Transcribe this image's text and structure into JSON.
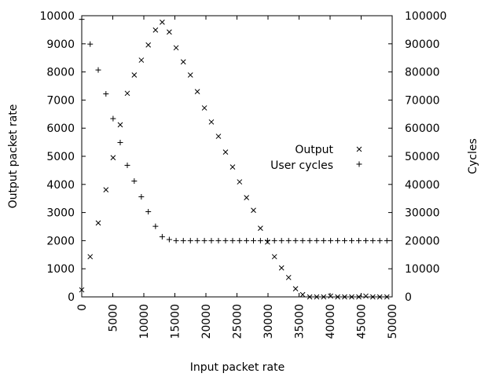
{
  "chart_data": {
    "type": "scatter",
    "title": "",
    "xlabel": "Input packet rate",
    "ylabel": "Output packet rate",
    "y2label": "Cycles",
    "xlim": [
      0,
      50000
    ],
    "ylim": [
      0,
      10000
    ],
    "y2lim": [
      0,
      100000
    ],
    "xticks": [
      "0",
      "5000",
      "10000",
      "15000",
      "20000",
      "25000",
      "30000",
      "35000",
      "40000",
      "45000",
      "50000"
    ],
    "yticks": [
      "0",
      "1000",
      "2000",
      "3000",
      "4000",
      "5000",
      "6000",
      "7000",
      "8000",
      "9000",
      "10000"
    ],
    "y2ticks": [
      "0",
      "10000",
      "20000",
      "30000",
      "40000",
      "50000",
      "60000",
      "70000",
      "80000",
      "90000",
      "100000"
    ],
    "grid": false,
    "legend_position": "right-middle",
    "series": [
      {
        "name": "Output",
        "axis": "left",
        "marker": "x",
        "x": [
          0,
          1360,
          2660,
          3900,
          5050,
          6200,
          7340,
          8460,
          9600,
          10720,
          11880,
          12960,
          14100,
          15200,
          16360,
          17500,
          18620,
          19760,
          20880,
          22020,
          23160,
          24300,
          25420,
          26540,
          27660,
          28780,
          29920,
          31040,
          32180,
          33320,
          34440,
          35580,
          36720,
          37840,
          38960,
          40080,
          41220,
          42340,
          43480,
          44620,
          45760,
          46880,
          48000,
          49150
        ],
        "y": [
          250,
          1430,
          2630,
          3810,
          4950,
          6120,
          7240,
          7890,
          8420,
          8960,
          9490,
          9770,
          9420,
          8860,
          8360,
          7890,
          7300,
          6720,
          6220,
          5710,
          5150,
          4620,
          4090,
          3530,
          3080,
          2440,
          1950,
          1430,
          1030,
          690,
          290,
          80,
          0,
          0,
          0,
          30,
          0,
          0,
          0,
          0,
          30,
          0,
          0,
          0
        ]
      },
      {
        "name": "User cycles",
        "axis": "right",
        "marker": "+",
        "x": [
          0,
          1360,
          2660,
          3900,
          5050,
          6200,
          7340,
          8460,
          9600,
          10720,
          11880,
          12960,
          14100,
          15200,
          16360,
          17500,
          18620,
          19760,
          20880,
          22020,
          23160,
          24300,
          25420,
          26540,
          27660,
          28780,
          29920,
          31040,
          32180,
          33320,
          34440,
          35580,
          36720,
          37840,
          38960,
          40080,
          41220,
          42340,
          43480,
          44620,
          45760,
          46880,
          48000,
          49150
        ],
        "y": [
          98700,
          89900,
          80700,
          72200,
          63400,
          54900,
          46800,
          41200,
          35600,
          30300,
          25100,
          21400,
          20400,
          20000,
          20000,
          20000,
          20000,
          20000,
          20000,
          20000,
          20000,
          20000,
          20000,
          20000,
          20000,
          20000,
          20000,
          20000,
          20000,
          20000,
          20000,
          20000,
          20000,
          20000,
          20000,
          20000,
          20000,
          20000,
          20000,
          20000,
          20000,
          20000,
          20000,
          20000
        ]
      }
    ]
  }
}
